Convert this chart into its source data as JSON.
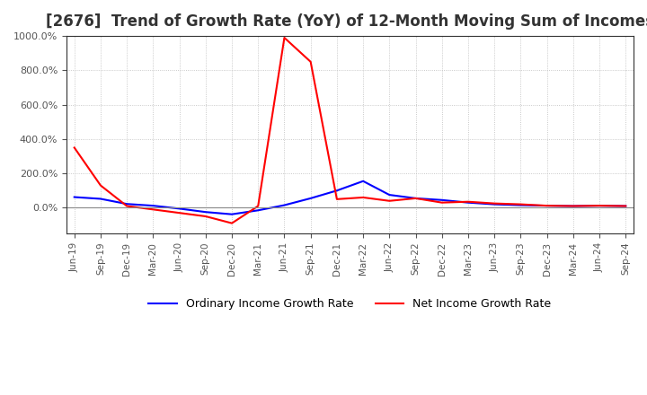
{
  "title": "[2676]  Trend of Growth Rate (YoY) of 12-Month Moving Sum of Incomes",
  "title_fontsize": 12,
  "background_color": "#ffffff",
  "grid_color": "#bbbbbb",
  "ylim": [
    -150,
    1000
  ],
  "yticks": [
    0,
    200,
    400,
    600,
    800,
    1000
  ],
  "legend_labels": [
    "Ordinary Income Growth Rate",
    "Net Income Growth Rate"
  ],
  "line_colors": [
    "#0000ff",
    "#ff0000"
  ],
  "x_labels": [
    "Jun-19",
    "Sep-19",
    "Dec-19",
    "Mar-20",
    "Jun-20",
    "Sep-20",
    "Dec-20",
    "Mar-21",
    "Jun-21",
    "Sep-21",
    "Dec-21",
    "Mar-22",
    "Jun-22",
    "Sep-22",
    "Dec-22",
    "Mar-23",
    "Jun-23",
    "Sep-23",
    "Dec-23",
    "Mar-24",
    "Jun-24",
    "Sep-24"
  ],
  "ordinary_income": [
    62,
    52,
    22,
    12,
    -5,
    -25,
    -38,
    -15,
    15,
    55,
    100,
    155,
    75,
    55,
    45,
    30,
    20,
    15,
    12,
    10,
    12,
    10
  ],
  "net_income": [
    350,
    130,
    10,
    -10,
    -30,
    -50,
    -90,
    10,
    990,
    850,
    50,
    60,
    40,
    55,
    30,
    35,
    25,
    20,
    12,
    10,
    12,
    10
  ]
}
